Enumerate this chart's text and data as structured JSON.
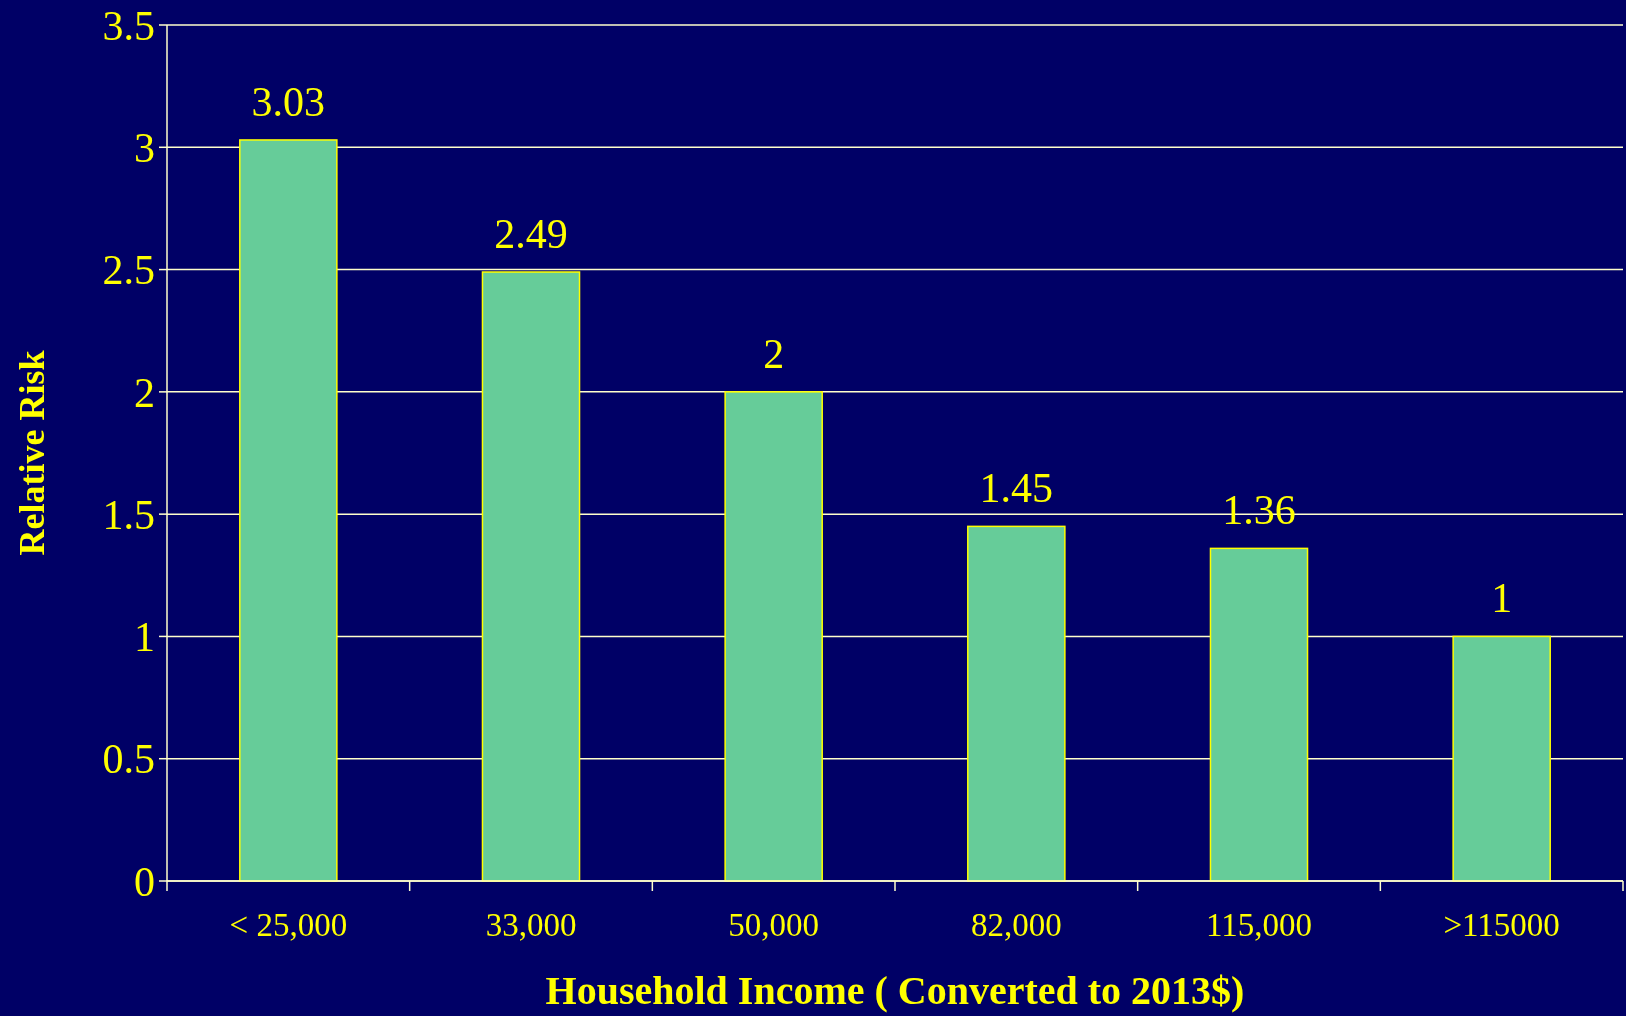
{
  "chart_data": {
    "type": "bar",
    "xlabel": "Household Income ( Converted to 2013$)",
    "ylabel": "Relative Risk",
    "categories": [
      "< 25,000",
      "33,000",
      "50,000",
      "82,000",
      "115,000",
      ">115000"
    ],
    "values": [
      3.03,
      2.49,
      2,
      1.45,
      1.36,
      1
    ],
    "color": "#66cc99",
    "ylim": [
      0,
      3.5
    ],
    "yticks": [
      0,
      0.5,
      1,
      1.5,
      2,
      2.5,
      3,
      3.5
    ],
    "grid": "y",
    "data_labels": true
  }
}
